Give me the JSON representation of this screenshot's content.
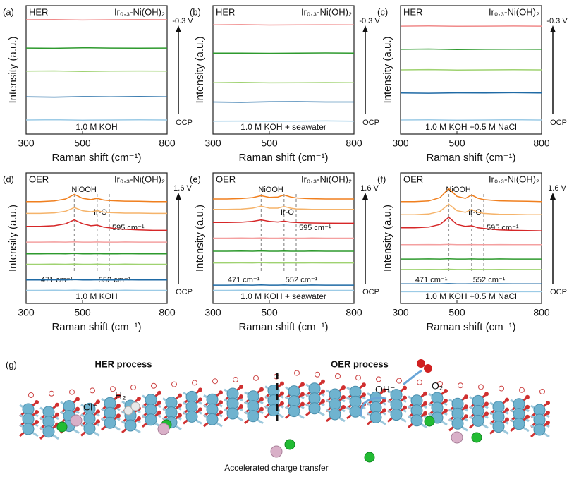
{
  "chart_data": [
    {
      "type": "line",
      "panel_label": "(a)",
      "title_left": "HER",
      "title_right": "Ir₀.₃-Ni(OH)₂",
      "bottom_label": "1.0 M KOH",
      "xlabel": "Raman shift (cm⁻¹)",
      "ylabel": "Intensity (a.u.)",
      "arrow_top": "-0.3 V",
      "arrow_bottom": "OCP",
      "xlim": [
        300,
        800
      ],
      "xticks": [
        300,
        500,
        800
      ],
      "ylim": [
        0,
        10
      ],
      "x": [
        300,
        400,
        500,
        600,
        700,
        800
      ],
      "series": [
        {
          "color": "#f08a8a",
          "values": [
            8.9,
            8.92,
            8.88,
            8.9,
            8.91,
            8.9
          ]
        },
        {
          "color": "#2e9a2e",
          "values": [
            6.7,
            6.68,
            6.72,
            6.7,
            6.69,
            6.7
          ]
        },
        {
          "color": "#9fd270",
          "values": [
            4.9,
            4.92,
            4.88,
            4.9,
            4.91,
            4.9
          ]
        },
        {
          "color": "#1f6aa5",
          "values": [
            2.9,
            2.88,
            2.91,
            2.9,
            2.92,
            2.9
          ]
        },
        {
          "color": "#9ccbe6",
          "values": [
            1.1,
            1.12,
            1.09,
            1.1,
            1.11,
            1.1
          ]
        }
      ]
    },
    {
      "type": "line",
      "panel_label": "(b)",
      "title_left": "HER",
      "title_right": "Ir₀.₃-Ni(OH)₂",
      "bottom_label": "1.0 M KOH + seawater",
      "xlabel": "Raman shift (cm⁻¹)",
      "ylabel": "Intensity (a.u.)",
      "arrow_top": "-0.3 V",
      "arrow_bottom": "OCP",
      "xlim": [
        300,
        800
      ],
      "xticks": [
        300,
        500,
        800
      ],
      "ylim": [
        0,
        10
      ],
      "x": [
        300,
        400,
        500,
        600,
        700,
        800
      ],
      "series": [
        {
          "color": "#f08a8a",
          "values": [
            8.5,
            8.52,
            8.49,
            8.5,
            8.51,
            8.5
          ]
        },
        {
          "color": "#2e9a2e",
          "values": [
            6.3,
            6.31,
            6.29,
            6.3,
            6.32,
            6.3
          ]
        },
        {
          "color": "#9fd270",
          "values": [
            4.0,
            4.02,
            3.99,
            4.0,
            4.01,
            4.0
          ]
        },
        {
          "color": "#1f6aa5",
          "values": [
            2.5,
            2.48,
            2.51,
            2.52,
            2.5,
            2.5
          ]
        },
        {
          "color": "#9ccbe6",
          "values": [
            1.0,
            1.01,
            0.99,
            1.0,
            1.02,
            1.0
          ]
        }
      ]
    },
    {
      "type": "line",
      "panel_label": "(c)",
      "title_left": "HER",
      "title_right": "Ir₀.₃-Ni(OH)₂",
      "bottom_label": "1.0 M KOH +0.5 M NaCl",
      "xlabel": "Raman shift (cm⁻¹)",
      "ylabel": "Intensity (a.u.)",
      "arrow_top": "-0.3 V",
      "arrow_bottom": "OCP",
      "xlim": [
        300,
        800
      ],
      "xticks": [
        300,
        500,
        800
      ],
      "ylim": [
        0,
        10
      ],
      "x": [
        300,
        400,
        500,
        600,
        700,
        800
      ],
      "series": [
        {
          "color": "#f08a8a",
          "values": [
            8.4,
            8.42,
            8.39,
            8.4,
            8.41,
            8.4
          ]
        },
        {
          "color": "#2e9a2e",
          "values": [
            6.6,
            6.62,
            6.58,
            6.6,
            6.61,
            6.6
          ]
        },
        {
          "color": "#9fd270",
          "values": [
            5.0,
            5.02,
            4.99,
            5.0,
            5.01,
            5.0
          ]
        },
        {
          "color": "#1f6aa5",
          "values": [
            3.2,
            3.18,
            3.21,
            3.2,
            3.22,
            3.2
          ]
        },
        {
          "color": "#9ccbe6",
          "values": [
            1.1,
            1.11,
            1.09,
            1.1,
            1.12,
            1.1
          ]
        }
      ]
    },
    {
      "type": "line",
      "panel_label": "(d)",
      "title_left": "OER",
      "title_right": "Ir₀.₃-Ni(OH)₂",
      "bottom_label": "1.0 M KOH",
      "xlabel": "Raman shift (cm⁻¹)",
      "ylabel": "Intensity (a.u.)",
      "arrow_top": "1.6 V",
      "arrow_bottom": "OCP",
      "annotations": [
        "NiOOH",
        "Ir-O"
      ],
      "peaks": [
        {
          "value": 471,
          "label": "471 cm⁻¹"
        },
        {
          "value": 552,
          "label": "552 cm⁻¹"
        },
        {
          "value": 595,
          "label": "595 cm⁻¹"
        }
      ],
      "xlim": [
        300,
        800
      ],
      "xticks": [
        300,
        500,
        800
      ],
      "ylim": [
        0,
        10
      ],
      "x": [
        300,
        350,
        400,
        440,
        471,
        500,
        530,
        552,
        575,
        595,
        625,
        650,
        700,
        750,
        800
      ],
      "series": [
        {
          "color": "#f07f1e",
          "values": [
            7.8,
            7.8,
            7.85,
            8.0,
            8.35,
            8.05,
            7.95,
            8.05,
            7.92,
            7.88,
            7.85,
            7.83,
            7.82,
            7.8,
            7.8
          ]
        },
        {
          "color": "#f5b36a",
          "values": [
            6.9,
            6.9,
            6.94,
            7.06,
            7.34,
            7.1,
            7.02,
            7.1,
            7.0,
            6.96,
            6.94,
            6.92,
            6.92,
            6.9,
            6.9
          ]
        },
        {
          "color": "#d62728",
          "values": [
            5.9,
            5.9,
            5.95,
            6.1,
            6.4,
            6.1,
            5.95,
            6.0,
            5.85,
            5.8,
            5.72,
            5.68,
            5.64,
            5.6,
            5.6
          ]
        },
        {
          "color": "#f4a0a0",
          "values": [
            4.7,
            4.7,
            4.71,
            4.7,
            4.72,
            4.7,
            4.7,
            4.71,
            4.7,
            4.7,
            4.7,
            4.71,
            4.7,
            4.7,
            4.7
          ]
        },
        {
          "color": "#2e9a2e",
          "values": [
            3.8,
            3.8,
            3.81,
            3.8,
            3.82,
            3.8,
            3.8,
            3.81,
            3.8,
            3.8,
            3.8,
            3.81,
            3.8,
            3.8,
            3.8
          ]
        },
        {
          "color": "#9fd270",
          "values": [
            3.0,
            3.0,
            3.01,
            3.0,
            3.02,
            3.0,
            3.0,
            3.01,
            3.0,
            3.0,
            3.0,
            3.01,
            3.0,
            3.0,
            3.0
          ]
        },
        {
          "color": "#1f6aa5",
          "values": [
            1.8,
            1.8,
            1.81,
            1.8,
            1.82,
            1.8,
            1.8,
            1.81,
            1.8,
            1.8,
            1.8,
            1.81,
            1.8,
            1.8,
            1.8
          ]
        },
        {
          "color": "#9ccbe6",
          "values": [
            1.0,
            1.0,
            1.01,
            1.0,
            1.02,
            1.0,
            1.0,
            1.01,
            1.0,
            1.0,
            1.0,
            1.01,
            1.0,
            1.0,
            1.0
          ]
        }
      ]
    },
    {
      "type": "line",
      "panel_label": "(e)",
      "title_left": "OER",
      "title_right": "Ir₀.₃-Ni(OH)₂",
      "bottom_label": "1.0 M KOH + seawater",
      "xlabel": "Raman shift (cm⁻¹)",
      "ylabel": "Intensity (a.u.)",
      "arrow_top": "1.6 V",
      "arrow_bottom": "OCP",
      "annotations": [
        "NiOOH",
        "Ir-O"
      ],
      "peaks": [
        {
          "value": 471,
          "label": "471 cm⁻¹"
        },
        {
          "value": 552,
          "label": "552 cm⁻¹"
        },
        {
          "value": 595,
          "label": "595 cm⁻¹"
        }
      ],
      "xlim": [
        300,
        800
      ],
      "xticks": [
        300,
        500,
        800
      ],
      "ylim": [
        0,
        10
      ],
      "x": [
        300,
        350,
        400,
        440,
        471,
        500,
        530,
        552,
        575,
        595,
        625,
        650,
        700,
        750,
        800
      ],
      "series": [
        {
          "color": "#f07f1e",
          "values": [
            8.0,
            8.0,
            8.03,
            8.1,
            8.25,
            8.12,
            8.15,
            8.3,
            8.15,
            8.08,
            8.04,
            8.02,
            8.0,
            8.0,
            8.0
          ]
        },
        {
          "color": "#f5b36a",
          "values": [
            7.2,
            7.2,
            7.22,
            7.3,
            7.45,
            7.3,
            7.3,
            7.42,
            7.3,
            7.24,
            7.22,
            7.2,
            7.2,
            7.2,
            7.2
          ]
        },
        {
          "color": "#d62728",
          "values": [
            6.2,
            6.2,
            6.22,
            6.28,
            6.4,
            6.28,
            6.24,
            6.3,
            6.22,
            6.2,
            6.18,
            6.16,
            6.15,
            6.14,
            6.14
          ]
        },
        {
          "color": "#f4a0a0",
          "values": [
            5.0,
            5.0,
            5.01,
            5.0,
            5.02,
            5.0,
            5.0,
            5.01,
            5.0,
            5.0,
            5.0,
            5.01,
            5.0,
            5.0,
            5.0
          ]
        },
        {
          "color": "#2e9a2e",
          "values": [
            4.0,
            4.0,
            4.01,
            4.0,
            4.02,
            4.0,
            4.0,
            4.01,
            4.0,
            4.0,
            4.0,
            4.01,
            4.0,
            4.0,
            4.0
          ]
        },
        {
          "color": "#9fd270",
          "values": [
            3.1,
            3.1,
            3.11,
            3.1,
            3.12,
            3.1,
            3.1,
            3.11,
            3.1,
            3.1,
            3.1,
            3.11,
            3.1,
            3.1,
            3.1
          ]
        },
        {
          "color": "#1f6aa5",
          "values": [
            1.4,
            1.4,
            1.41,
            1.4,
            1.42,
            1.4,
            1.4,
            1.41,
            1.4,
            1.4,
            1.4,
            1.41,
            1.4,
            1.4,
            1.4
          ]
        },
        {
          "color": "#9ccbe6",
          "values": [
            1.0,
            1.0,
            1.01,
            1.0,
            1.02,
            1.0,
            1.0,
            1.01,
            1.0,
            1.0,
            1.0,
            1.01,
            1.0,
            1.0,
            1.0
          ]
        }
      ]
    },
    {
      "type": "line",
      "panel_label": "(f)",
      "title_left": "OER",
      "title_right": "Ir₀.₃-Ni(OH)₂",
      "bottom_label": "1.0 M KOH +0.5 M NaCl",
      "xlabel": "Raman shift (cm⁻¹)",
      "ylabel": "Intensity (a.u.)",
      "arrow_top": "1.6 V",
      "arrow_bottom": "OCP",
      "annotations": [
        "NiOOH",
        "Ir-O"
      ],
      "peaks": [
        {
          "value": 471,
          "label": "471 cm⁻¹"
        },
        {
          "value": 552,
          "label": "552 cm⁻¹"
        },
        {
          "value": 595,
          "label": "595 cm⁻¹"
        }
      ],
      "xlim": [
        300,
        800
      ],
      "xticks": [
        300,
        500,
        800
      ],
      "ylim": [
        0,
        10
      ],
      "x": [
        300,
        350,
        400,
        440,
        471,
        500,
        530,
        552,
        575,
        595,
        625,
        650,
        700,
        750,
        800
      ],
      "series": [
        {
          "color": "#f07f1e",
          "values": [
            7.8,
            7.8,
            7.85,
            8.1,
            8.8,
            8.2,
            8.05,
            8.3,
            8.05,
            7.95,
            7.9,
            7.86,
            7.84,
            7.82,
            7.8
          ]
        },
        {
          "color": "#f5b36a",
          "values": [
            6.8,
            6.8,
            6.85,
            7.05,
            7.6,
            7.1,
            6.98,
            7.2,
            6.98,
            6.9,
            6.86,
            6.83,
            6.82,
            6.8,
            6.8
          ]
        },
        {
          "color": "#d62728",
          "values": [
            5.8,
            5.8,
            5.85,
            6.05,
            6.6,
            6.05,
            5.9,
            5.95,
            5.8,
            5.75,
            5.68,
            5.64,
            5.6,
            5.58,
            5.56
          ]
        },
        {
          "color": "#f4a0a0",
          "values": [
            4.5,
            4.5,
            4.51,
            4.5,
            4.52,
            4.5,
            4.5,
            4.51,
            4.5,
            4.5,
            4.5,
            4.51,
            4.5,
            4.5,
            4.5
          ]
        },
        {
          "color": "#2e9a2e",
          "values": [
            3.4,
            3.4,
            3.41,
            3.4,
            3.42,
            3.4,
            3.4,
            3.41,
            3.4,
            3.4,
            3.4,
            3.41,
            3.4,
            3.4,
            3.4
          ]
        },
        {
          "color": "#9fd270",
          "values": [
            2.6,
            2.6,
            2.61,
            2.6,
            2.62,
            2.6,
            2.6,
            2.61,
            2.6,
            2.6,
            2.6,
            2.61,
            2.6,
            2.6,
            2.6
          ]
        },
        {
          "color": "#1f6aa5",
          "values": [
            1.5,
            1.5,
            1.51,
            1.5,
            1.52,
            1.5,
            1.5,
            1.51,
            1.5,
            1.5,
            1.5,
            1.51,
            1.5,
            1.5,
            1.5
          ]
        },
        {
          "color": "#9ccbe6",
          "values": [
            0.9,
            0.9,
            0.91,
            0.9,
            0.92,
            0.9,
            0.9,
            0.91,
            0.9,
            0.9,
            0.9,
            0.91,
            0.9,
            0.9,
            0.9
          ]
        }
      ]
    }
  ],
  "illustration": {
    "panel_label": "(g)",
    "left_title": "HER process",
    "right_title": "OER process",
    "cl": "Cl⁻",
    "h2": "H₂",
    "oh": "OH⁻",
    "o2": "O₂",
    "caption": "Accelerated charge transfer"
  }
}
